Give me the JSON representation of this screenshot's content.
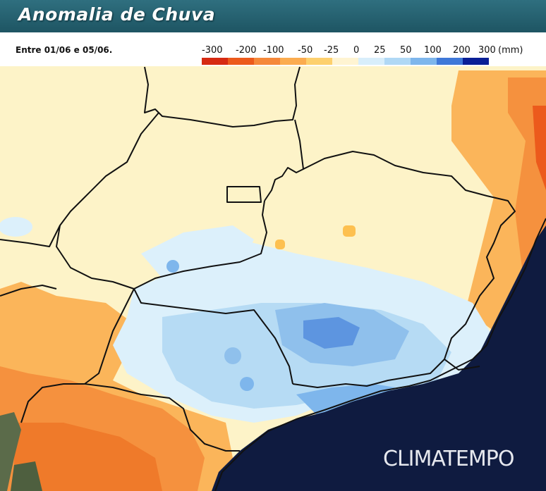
{
  "header": {
    "title": "Anomalia de Chuva"
  },
  "legend": {
    "period": "Entre 01/06 e 05/06.",
    "unit": "(mm)",
    "ticks": [
      "-300",
      "-200",
      "-100",
      "-50",
      "-25",
      "0",
      "25",
      "50",
      "100",
      "200",
      "300"
    ],
    "colors": [
      "#d62a12",
      "#ec5a1c",
      "#f5883a",
      "#fbac50",
      "#fdd06e",
      "#fff4d2",
      "#d8eefb",
      "#b0d8f5",
      "#7eb6ec",
      "#3f78d8",
      "#0a1f96"
    ]
  },
  "map": {
    "colors": {
      "background": "#fdf3c8",
      "ocean": "#0f1b40",
      "border": "#111111"
    }
  },
  "watermark": {
    "text": "CLIMATEMPO"
  }
}
